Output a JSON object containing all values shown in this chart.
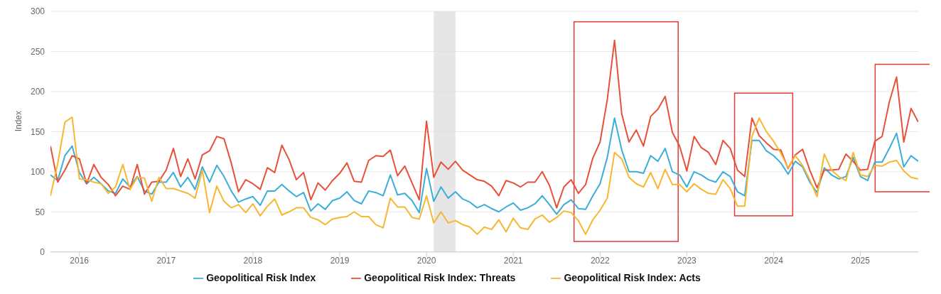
{
  "chart_data": {
    "type": "line",
    "ylabel": "Index",
    "x": [
      "2015-09",
      "2015-10",
      "2015-11",
      "2015-12",
      "2016-01",
      "2016-02",
      "2016-03",
      "2016-04",
      "2016-05",
      "2016-06",
      "2016-07",
      "2016-08",
      "2016-09",
      "2016-10",
      "2016-11",
      "2016-12",
      "2017-01",
      "2017-02",
      "2017-03",
      "2017-04",
      "2017-05",
      "2017-06",
      "2017-07",
      "2017-08",
      "2017-09",
      "2017-10",
      "2017-11",
      "2017-12",
      "2018-01",
      "2018-02",
      "2018-03",
      "2018-04",
      "2018-05",
      "2018-06",
      "2018-07",
      "2018-08",
      "2018-09",
      "2018-10",
      "2018-11",
      "2018-12",
      "2019-01",
      "2019-02",
      "2019-03",
      "2019-04",
      "2019-05",
      "2019-06",
      "2019-07",
      "2019-08",
      "2019-09",
      "2019-10",
      "2019-11",
      "2019-12",
      "2020-01",
      "2020-02",
      "2020-03",
      "2020-04",
      "2020-05",
      "2020-06",
      "2020-07",
      "2020-08",
      "2020-09",
      "2020-10",
      "2020-11",
      "2020-12",
      "2021-01",
      "2021-02",
      "2021-03",
      "2021-04",
      "2021-05",
      "2021-06",
      "2021-07",
      "2021-08",
      "2021-09",
      "2021-10",
      "2021-11",
      "2021-12",
      "2022-01",
      "2022-02",
      "2022-03",
      "2022-04",
      "2022-05",
      "2022-06",
      "2022-07",
      "2022-08",
      "2022-09",
      "2022-10",
      "2022-11",
      "2022-12",
      "2023-01",
      "2023-02",
      "2023-03",
      "2023-04",
      "2023-05",
      "2023-06",
      "2023-07",
      "2023-08",
      "2023-09",
      "2023-10",
      "2023-11",
      "2023-12",
      "2024-01",
      "2024-02",
      "2024-03",
      "2024-04",
      "2024-05",
      "2024-06",
      "2024-07",
      "2024-08",
      "2024-09",
      "2024-10",
      "2024-11",
      "2024-12",
      "2025-01",
      "2025-02",
      "2025-03",
      "2025-04",
      "2025-05",
      "2025-06",
      "2025-07",
      "2025-08",
      "2025-09"
    ],
    "series": [
      {
        "name": "Geopolitical Risk Index",
        "color": "#3aaed8",
        "values": [
          96,
          89,
          120,
          132,
          99,
          85,
          93,
          85,
          76,
          73,
          91,
          81,
          94,
          76,
          72,
          87,
          87,
          99,
          81,
          93,
          78,
          106,
          87,
          108,
          94,
          76,
          62,
          66,
          69,
          58,
          76,
          76,
          84,
          76,
          69,
          74,
          51,
          60,
          53,
          64,
          67,
          75,
          64,
          60,
          76,
          74,
          70,
          96,
          71,
          73,
          64,
          49,
          104,
          63,
          81,
          67,
          75,
          66,
          62,
          55,
          59,
          54,
          50,
          56,
          61,
          52,
          55,
          60,
          70,
          59,
          47,
          59,
          65,
          54,
          53,
          70,
          85,
          118,
          167,
          127,
          100,
          100,
          98,
          120,
          113,
          129,
          100,
          96,
          81,
          100,
          96,
          90,
          87,
          100,
          94,
          75,
          70,
          139,
          139,
          126,
          120,
          111,
          97,
          113,
          106,
          87,
          74,
          105,
          96,
          91,
          94,
          118,
          94,
          89,
          112,
          112,
          129,
          148,
          106,
          120,
          113
        ]
      },
      {
        "name": "Geopolitical Risk Index: Threats",
        "color": "#e8503a",
        "values": [
          132,
          87,
          102,
          120,
          116,
          85,
          109,
          93,
          84,
          70,
          82,
          78,
          109,
          72,
          87,
          88,
          102,
          129,
          94,
          116,
          91,
          121,
          126,
          144,
          141,
          111,
          75,
          90,
          85,
          78,
          105,
          99,
          133,
          115,
          90,
          99,
          65,
          86,
          77,
          89,
          98,
          111,
          88,
          87,
          114,
          120,
          119,
          127,
          95,
          107,
          86,
          65,
          163,
          93,
          112,
          103,
          113,
          102,
          96,
          90,
          88,
          82,
          70,
          89,
          86,
          81,
          87,
          87,
          100,
          83,
          55,
          81,
          90,
          73,
          84,
          117,
          137,
          190,
          264,
          172,
          137,
          152,
          132,
          169,
          178,
          194,
          149,
          132,
          101,
          144,
          130,
          124,
          109,
          139,
          129,
          102,
          94,
          167,
          145,
          136,
          128,
          127,
          104,
          121,
          128,
          102,
          80,
          102,
          102,
          103,
          122,
          113,
          102,
          103,
          138,
          144,
          187,
          218,
          137,
          179,
          162
        ]
      },
      {
        "name": "Geopolitical Risk Index: Acts",
        "color": "#f7b731",
        "values": [
          70,
          110,
          162,
          168,
          91,
          90,
          87,
          85,
          73,
          81,
          109,
          78,
          93,
          92,
          63,
          93,
          79,
          79,
          76,
          73,
          67,
          102,
          49,
          82,
          63,
          55,
          59,
          49,
          60,
          45,
          57,
          66,
          46,
          50,
          55,
          55,
          43,
          40,
          34,
          41,
          43,
          44,
          50,
          44,
          44,
          34,
          30,
          67,
          56,
          56,
          43,
          41,
          70,
          36,
          50,
          36,
          39,
          34,
          31,
          22,
          31,
          28,
          40,
          25,
          42,
          30,
          28,
          41,
          46,
          37,
          43,
          51,
          49,
          39,
          22,
          40,
          52,
          67,
          124,
          116,
          93,
          85,
          81,
          99,
          79,
          103,
          84,
          84,
          75,
          85,
          78,
          73,
          72,
          90,
          79,
          57,
          57,
          144,
          167,
          150,
          138,
          123,
          105,
          120,
          108,
          90,
          69,
          122,
          102,
          94,
          89,
          124,
          96,
          94,
          108,
          107,
          112,
          114,
          101,
          93,
          91
        ]
      }
    ],
    "xlim": [
      "2015-09",
      "2025-09"
    ],
    "xticks": [
      "2016",
      "2017",
      "2018",
      "2019",
      "2020",
      "2021",
      "2022",
      "2023",
      "2024",
      "2025"
    ],
    "ylim": [
      0,
      300
    ],
    "yticks": [
      0,
      50,
      100,
      150,
      200,
      250,
      300
    ],
    "grid": "y",
    "legend": "bottom",
    "bands": [
      {
        "axis": "x",
        "from": "2020-02",
        "to": "2020-05",
        "color": "#e0e0e0"
      }
    ]
  }
}
